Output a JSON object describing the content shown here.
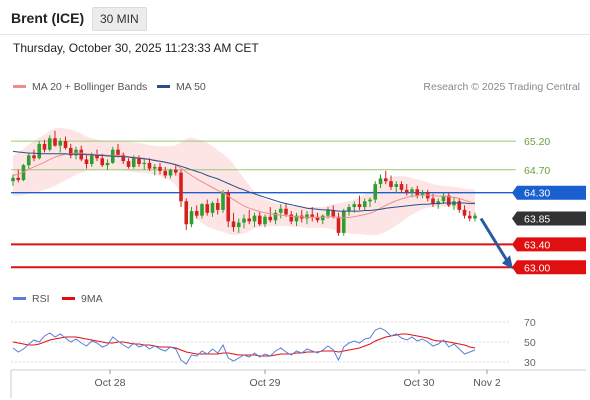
{
  "header": {
    "symbol": "Brent (ICE)",
    "interval": "30 MIN",
    "timestamp": "Thursday, October 30, 2025 11:23:33 AM CET"
  },
  "legend": {
    "items": [
      {
        "label": "MA 20 + Bollinger Bands",
        "color": "#f08c8c"
      },
      {
        "label": "MA 50",
        "color": "#2a4e8c"
      }
    ],
    "credit": "Research © 2025 Trading Central"
  },
  "rsi_legend": {
    "items": [
      {
        "label": "RSI",
        "color": "#5a7fd8"
      },
      {
        "label": "9MA",
        "color": "#e01010"
      }
    ]
  },
  "chart_data": [
    {
      "type": "candlestick",
      "title": "",
      "xlabel": "",
      "ylabel": "",
      "ylim": [
        62.9,
        65.55
      ],
      "x_ticks": [
        "Oct 28",
        "Oct 29",
        "Oct 30",
        "Nov 2"
      ],
      "levels": [
        {
          "value": 65.2,
          "label": "65.20",
          "kind": "resistance"
        },
        {
          "value": 64.7,
          "label": "64.70",
          "kind": "resistance"
        },
        {
          "value": 64.3,
          "label": "64.30",
          "kind": "pivot"
        },
        {
          "value": 63.85,
          "label": "63.85",
          "kind": "last"
        },
        {
          "value": 63.4,
          "label": "63.40",
          "kind": "support"
        },
        {
          "value": 63.0,
          "label": "63.00",
          "kind": "support"
        }
      ],
      "colors": {
        "up": "#2e9e2e",
        "down": "#d62020",
        "resistance": "#9cc870",
        "pivot": "#1a5fd0",
        "support": "#e01010",
        "last": "#333333",
        "ma20": "#f08c8c",
        "ma50": "#2a4e8c",
        "band": "#fde0e0",
        "arrow": "#2a5aa0"
      },
      "candles": [
        [
          64.5,
          64.62,
          64.42,
          64.56
        ],
        [
          64.56,
          64.7,
          64.48,
          64.52
        ],
        [
          64.52,
          64.8,
          64.5,
          64.78
        ],
        [
          64.78,
          65.0,
          64.72,
          64.95
        ],
        [
          64.95,
          65.05,
          64.85,
          64.9
        ],
        [
          64.9,
          65.2,
          64.88,
          65.15
        ],
        [
          65.15,
          65.22,
          65.0,
          65.05
        ],
        [
          65.05,
          65.3,
          65.02,
          65.25
        ],
        [
          65.25,
          65.38,
          65.1,
          65.12
        ],
        [
          65.12,
          65.25,
          65.0,
          65.2
        ],
        [
          65.2,
          65.28,
          65.05,
          65.08
        ],
        [
          65.08,
          65.15,
          64.9,
          64.95
        ],
        [
          64.95,
          65.1,
          64.88,
          65.05
        ],
        [
          65.05,
          65.12,
          64.85,
          64.88
        ],
        [
          64.88,
          64.95,
          64.72,
          64.8
        ],
        [
          64.8,
          65.0,
          64.75,
          64.95
        ],
        [
          64.95,
          65.05,
          64.85,
          64.9
        ],
        [
          64.9,
          64.98,
          64.75,
          64.78
        ],
        [
          64.78,
          64.88,
          64.7,
          64.82
        ],
        [
          64.82,
          65.1,
          64.8,
          65.05
        ],
        [
          65.05,
          65.15,
          64.92,
          64.96
        ],
        [
          64.96,
          65.0,
          64.8,
          64.85
        ],
        [
          64.85,
          64.9,
          64.72,
          64.75
        ],
        [
          64.75,
          64.95,
          64.72,
          64.9
        ],
        [
          64.9,
          64.95,
          64.75,
          64.8
        ],
        [
          64.8,
          64.88,
          64.7,
          64.82
        ],
        [
          64.82,
          64.9,
          64.68,
          64.72
        ],
        [
          64.72,
          64.8,
          64.6,
          64.75
        ],
        [
          64.75,
          64.82,
          64.62,
          64.68
        ],
        [
          64.68,
          64.75,
          64.55,
          64.6
        ],
        [
          64.6,
          64.72,
          64.55,
          64.7
        ],
        [
          64.7,
          64.78,
          64.6,
          64.65
        ],
        [
          64.65,
          64.7,
          64.05,
          64.15
        ],
        [
          64.15,
          64.2,
          63.65,
          63.75
        ],
        [
          63.75,
          64.05,
          63.7,
          63.98
        ],
        [
          63.98,
          64.08,
          63.85,
          63.9
        ],
        [
          63.9,
          64.12,
          63.85,
          64.1
        ],
        [
          64.1,
          64.18,
          63.9,
          63.95
        ],
        [
          63.95,
          64.15,
          63.88,
          64.12
        ],
        [
          64.12,
          64.2,
          63.92,
          64.0
        ],
        [
          64.0,
          64.35,
          63.95,
          64.3
        ],
        [
          64.3,
          64.35,
          63.7,
          63.8
        ],
        [
          63.8,
          63.95,
          63.62,
          63.7
        ],
        [
          63.7,
          63.85,
          63.6,
          63.78
        ],
        [
          63.78,
          63.92,
          63.68,
          63.85
        ],
        [
          63.85,
          64.0,
          63.75,
          63.8
        ],
        [
          63.8,
          63.95,
          63.7,
          63.9
        ],
        [
          63.9,
          63.98,
          63.72,
          63.75
        ],
        [
          63.75,
          63.92,
          63.7,
          63.88
        ],
        [
          63.88,
          64.05,
          63.78,
          63.82
        ],
        [
          63.82,
          64.0,
          63.75,
          63.95
        ],
        [
          63.95,
          64.1,
          63.85,
          64.02
        ],
        [
          64.02,
          64.12,
          63.88,
          63.92
        ],
        [
          63.92,
          63.98,
          63.75,
          63.8
        ],
        [
          63.8,
          63.95,
          63.72,
          63.9
        ],
        [
          63.9,
          64.0,
          63.78,
          63.85
        ],
        [
          63.85,
          63.98,
          63.75,
          63.92
        ],
        [
          63.92,
          64.05,
          63.8,
          63.88
        ],
        [
          63.88,
          63.95,
          63.78,
          63.82
        ],
        [
          63.82,
          63.92,
          63.75,
          63.9
        ],
        [
          63.9,
          64.05,
          63.85,
          64.0
        ],
        [
          64.0,
          64.08,
          63.85,
          63.88
        ],
        [
          63.88,
          63.95,
          63.55,
          63.6
        ],
        [
          63.6,
          64.02,
          63.55,
          63.98
        ],
        [
          63.98,
          64.1,
          63.9,
          64.05
        ],
        [
          64.05,
          64.15,
          63.95,
          64.1
        ],
        [
          64.1,
          64.25,
          64.0,
          64.05
        ],
        [
          64.05,
          64.2,
          63.98,
          64.15
        ],
        [
          64.15,
          64.22,
          64.05,
          64.18
        ],
        [
          64.18,
          64.5,
          64.12,
          64.45
        ],
        [
          64.45,
          64.62,
          64.38,
          64.55
        ],
        [
          64.55,
          64.68,
          64.45,
          64.5
        ],
        [
          64.5,
          64.6,
          64.35,
          64.4
        ],
        [
          64.4,
          64.5,
          64.3,
          64.45
        ],
        [
          64.45,
          64.5,
          64.3,
          64.35
        ],
        [
          64.35,
          64.45,
          64.25,
          64.3
        ],
        [
          64.3,
          64.4,
          64.22,
          64.36
        ],
        [
          64.36,
          64.42,
          64.2,
          64.25
        ],
        [
          64.25,
          64.35,
          64.2,
          64.3
        ],
        [
          64.3,
          64.35,
          64.15,
          64.2
        ],
        [
          64.2,
          64.28,
          64.05,
          64.1
        ],
        [
          64.1,
          64.2,
          64.02,
          64.15
        ],
        [
          64.15,
          64.3,
          64.1,
          64.25
        ],
        [
          64.25,
          64.3,
          64.05,
          64.08
        ],
        [
          64.08,
          64.22,
          64.0,
          64.15
        ],
        [
          64.15,
          64.2,
          63.95,
          64.0
        ],
        [
          64.0,
          64.08,
          63.85,
          63.9
        ],
        [
          63.9,
          63.98,
          63.8,
          63.85
        ],
        [
          63.85,
          63.95,
          63.8,
          63.9
        ]
      ],
      "ma20": [
        64.6,
        64.62,
        64.66,
        64.71,
        64.75,
        64.79,
        64.83,
        64.88,
        64.92,
        64.95,
        64.97,
        64.98,
        64.99,
        64.99,
        64.98,
        64.97,
        64.97,
        64.96,
        64.95,
        64.95,
        64.95,
        64.94,
        64.93,
        64.92,
        64.91,
        64.9,
        64.88,
        64.87,
        64.85,
        64.83,
        64.81,
        64.78,
        64.73,
        64.66,
        64.6,
        64.54,
        64.49,
        64.44,
        64.39,
        64.34,
        64.3,
        64.24,
        64.18,
        64.12,
        64.07,
        64.03,
        64.0,
        63.97,
        63.95,
        63.93,
        63.92,
        63.91,
        63.9,
        63.89,
        63.88,
        63.88,
        63.87,
        63.87,
        63.87,
        63.87,
        63.88,
        63.88,
        63.86,
        63.86,
        63.87,
        63.88,
        63.9,
        63.92,
        63.94,
        63.98,
        64.03,
        64.08,
        64.12,
        64.16,
        64.19,
        64.22,
        64.24,
        64.25,
        64.26,
        64.26,
        64.25,
        64.24,
        64.24,
        64.23,
        64.22,
        64.2,
        64.17,
        64.14,
        64.12
      ],
      "ma50": [
        65.02,
        65.01,
        65.0,
        64.99,
        64.99,
        64.98,
        64.98,
        64.98,
        64.98,
        64.98,
        64.98,
        64.97,
        64.97,
        64.97,
        64.96,
        64.96,
        64.95,
        64.95,
        64.94,
        64.94,
        64.93,
        64.93,
        64.92,
        64.91,
        64.9,
        64.89,
        64.88,
        64.86,
        64.85,
        64.83,
        64.81,
        64.79,
        64.76,
        64.73,
        64.7,
        64.67,
        64.64,
        64.6,
        64.57,
        64.54,
        64.5,
        64.46,
        64.42,
        64.38,
        64.35,
        64.31,
        64.28,
        64.25,
        64.22,
        64.19,
        64.16,
        64.13,
        64.11,
        64.09,
        64.07,
        64.05,
        64.03,
        64.02,
        64.01,
        64.0,
        64.0,
        63.99,
        63.98,
        63.98,
        63.98,
        63.98,
        63.98,
        63.99,
        63.99,
        64.0,
        64.01,
        64.03,
        64.04,
        64.05,
        64.06,
        64.07,
        64.08,
        64.09,
        64.1,
        64.1,
        64.11,
        64.11,
        64.12,
        64.12,
        64.12,
        64.12,
        64.12,
        64.11,
        64.11
      ],
      "bb_width": [
        0.35,
        0.38,
        0.4,
        0.43,
        0.45,
        0.47,
        0.48,
        0.5,
        0.5,
        0.48,
        0.45,
        0.42,
        0.38,
        0.34,
        0.3,
        0.28,
        0.26,
        0.25,
        0.24,
        0.24,
        0.25,
        0.25,
        0.26,
        0.26,
        0.26,
        0.25,
        0.25,
        0.25,
        0.26,
        0.28,
        0.3,
        0.35,
        0.45,
        0.58,
        0.66,
        0.7,
        0.72,
        0.73,
        0.72,
        0.7,
        0.68,
        0.66,
        0.62,
        0.55,
        0.48,
        0.4,
        0.32,
        0.27,
        0.24,
        0.22,
        0.2,
        0.19,
        0.18,
        0.18,
        0.18,
        0.18,
        0.18,
        0.18,
        0.18,
        0.18,
        0.2,
        0.22,
        0.25,
        0.27,
        0.28,
        0.3,
        0.32,
        0.35,
        0.38,
        0.42,
        0.45,
        0.46,
        0.45,
        0.43,
        0.4,
        0.36,
        0.32,
        0.28,
        0.25,
        0.22,
        0.2,
        0.19,
        0.18,
        0.18,
        0.18,
        0.19,
        0.2,
        0.22,
        0.23
      ],
      "forecast_arrow": {
        "from": 63.85,
        "to": 63.0
      }
    },
    {
      "type": "line",
      "title": "",
      "ylim": [
        20,
        80
      ],
      "y_ticks": [
        70,
        50,
        30
      ],
      "series": [
        {
          "name": "RSI",
          "values": [
            44,
            40,
            43,
            48,
            52,
            50,
            56,
            59,
            55,
            58,
            54,
            50,
            53,
            49,
            46,
            51,
            49,
            45,
            47,
            55,
            51,
            47,
            44,
            49,
            45,
            47,
            43,
            46,
            43,
            41,
            45,
            43,
            32,
            28,
            37,
            36,
            41,
            38,
            43,
            39,
            47,
            34,
            31,
            34,
            37,
            35,
            39,
            35,
            38,
            36,
            41,
            44,
            40,
            37,
            41,
            39,
            43,
            41,
            39,
            42,
            46,
            42,
            32,
            45,
            49,
            51,
            49,
            53,
            54,
            62,
            64,
            61,
            56,
            58,
            54,
            52,
            55,
            51,
            53,
            50,
            46,
            48,
            52,
            45,
            48,
            43,
            38,
            40,
            42
          ]
        },
        {
          "name": "9MA",
          "values": [
            50,
            49,
            48,
            47,
            47,
            48,
            50,
            52,
            53,
            54,
            55,
            55,
            55,
            54,
            53,
            52,
            51,
            50,
            49,
            49,
            50,
            50,
            49,
            48,
            48,
            47,
            47,
            46,
            45,
            45,
            45,
            44,
            42,
            40,
            39,
            38,
            38,
            38,
            38,
            38,
            39,
            39,
            38,
            37,
            37,
            37,
            37,
            36,
            36,
            36,
            37,
            38,
            38,
            38,
            39,
            39,
            40,
            40,
            40,
            41,
            41,
            41,
            40,
            41,
            42,
            43,
            44,
            46,
            48,
            51,
            53,
            55,
            56,
            57,
            58,
            58,
            57,
            56,
            55,
            54,
            52,
            51,
            51,
            50,
            49,
            48,
            47,
            45,
            44
          ]
        }
      ]
    }
  ]
}
